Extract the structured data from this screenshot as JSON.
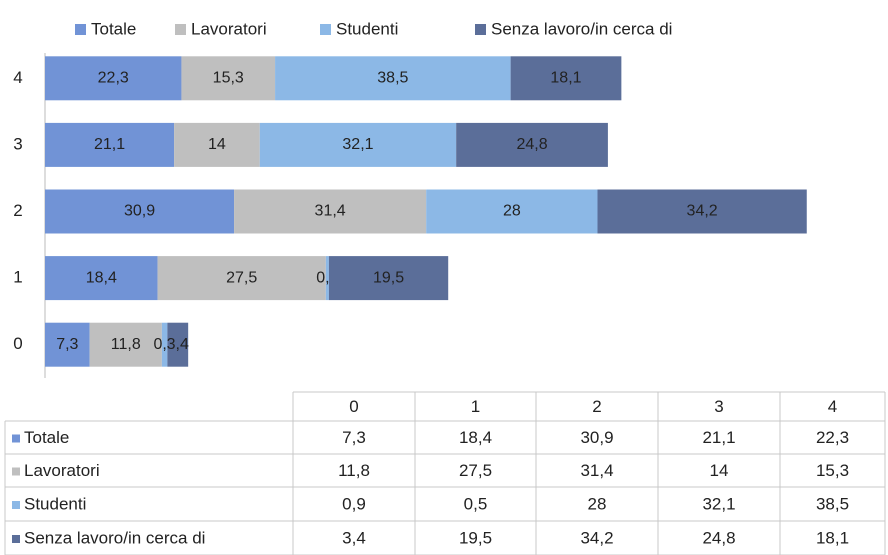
{
  "chart_data": {
    "type": "stacked-barh",
    "categories": [
      "0",
      "1",
      "2",
      "3",
      "4"
    ],
    "series": [
      {
        "name": "Totale",
        "color": "#7193d6",
        "values": [
          7.3,
          18.4,
          30.9,
          21.1,
          22.3
        ],
        "value_labels": [
          "7,3",
          "18,4",
          "30,9",
          "21,1",
          "22,3"
        ]
      },
      {
        "name": "Lavoratori",
        "color": "#bfbfbf",
        "values": [
          11.8,
          27.5,
          31.4,
          14,
          15.3
        ],
        "value_labels": [
          "11,8",
          "27,5",
          "31,4",
          "14",
          "15,3"
        ]
      },
      {
        "name": "Studenti",
        "color": "#8cb8e6",
        "values": [
          0.9,
          0.5,
          28,
          32.1,
          38.5
        ],
        "value_labels": [
          "0,9",
          "0,5",
          "28",
          "32,1",
          "38,5"
        ]
      },
      {
        "name": "Senza lavoro/in cerca di",
        "color": "#5b6e99",
        "values": [
          3.4,
          19.5,
          34.2,
          24.8,
          18.1
        ],
        "value_labels": [
          "3,4",
          "19,5",
          "34,2",
          "24,8",
          "18,1"
        ]
      }
    ],
    "xlim": [
      0,
      135
    ],
    "legend": "top"
  }
}
